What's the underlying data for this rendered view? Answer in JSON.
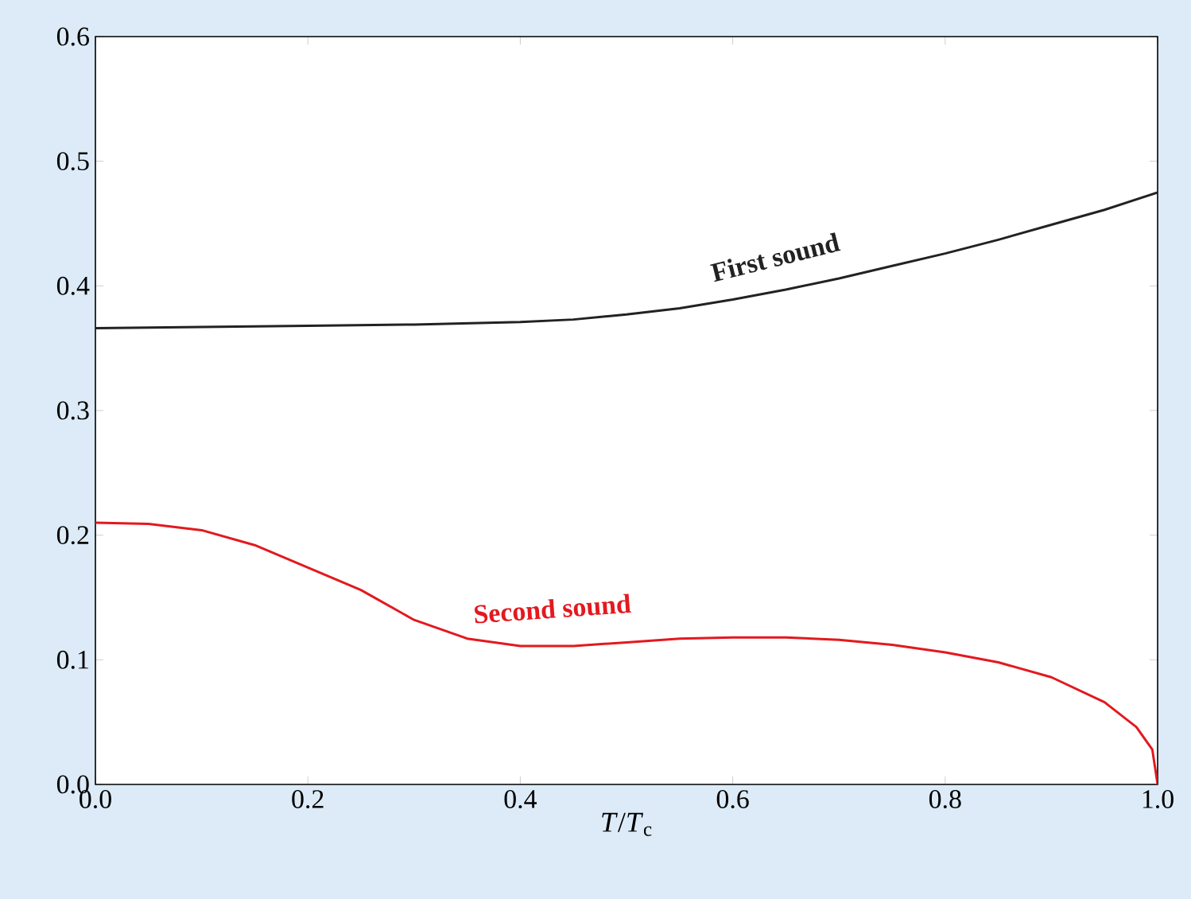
{
  "chart_data": {
    "type": "line",
    "xlabel": "*T*/*T*$_{c}$",
    "xlim": [
      0,
      1
    ],
    "ylim": [
      0,
      0.6
    ],
    "xticks": [
      {
        "value": 0,
        "label": "0.0"
      },
      {
        "value": 0.2,
        "label": "0.2"
      },
      {
        "value": 0.4,
        "label": "0.4"
      },
      {
        "value": 0.6,
        "label": "0.6"
      },
      {
        "value": 0.8,
        "label": "0.8"
      },
      {
        "value": 1,
        "label": "1.0"
      }
    ],
    "yticks": [
      {
        "value": 0,
        "label": "0.0"
      },
      {
        "value": 0.1,
        "label": "0.1"
      },
      {
        "value": 0.2,
        "label": "0.2"
      },
      {
        "value": 0.3,
        "label": "0.3"
      },
      {
        "value": 0.4,
        "label": "0.4"
      },
      {
        "value": 0.5,
        "label": "0.5"
      },
      {
        "value": 0.6,
        "label": "0.6"
      }
    ],
    "grid": false,
    "legend": false,
    "series": [
      {
        "name": "First sound",
        "color": "#222222",
        "x": [
          0,
          0.1,
          0.2,
          0.3,
          0.4,
          0.45,
          0.5,
          0.55,
          0.6,
          0.65,
          0.7,
          0.75,
          0.8,
          0.85,
          0.9,
          0.95,
          1.0
        ],
        "values": [
          0.366,
          0.367,
          0.368,
          0.369,
          0.371,
          0.373,
          0.377,
          0.382,
          0.389,
          0.397,
          0.406,
          0.416,
          0.426,
          0.437,
          0.449,
          0.461,
          0.475
        ]
      },
      {
        "name": "Second sound",
        "color": "#e3191f",
        "x": [
          0,
          0.05,
          0.1,
          0.15,
          0.2,
          0.25,
          0.3,
          0.35,
          0.4,
          0.45,
          0.5,
          0.55,
          0.6,
          0.65,
          0.7,
          0.75,
          0.8,
          0.85,
          0.9,
          0.95,
          0.98,
          0.995,
          1.0
        ],
        "values": [
          0.21,
          0.209,
          0.204,
          0.192,
          0.174,
          0.156,
          0.132,
          0.117,
          0.111,
          0.111,
          0.114,
          0.117,
          0.118,
          0.118,
          0.116,
          0.112,
          0.106,
          0.098,
          0.086,
          0.066,
          0.046,
          0.028,
          0.0
        ]
      }
    ]
  }
}
